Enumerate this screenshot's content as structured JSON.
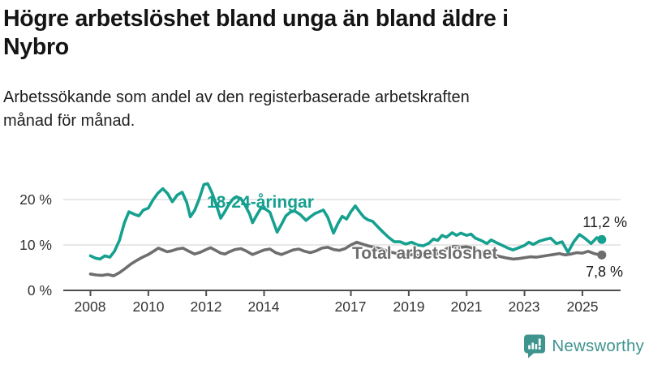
{
  "chart_data": {
    "type": "line",
    "title": "Högre arbetslöshet bland unga än bland äldre i Nybro",
    "subtitle": "Arbetssökande som andel av den registerbaserade arbetskraften månad för månad.",
    "grid": true,
    "legend_position": "inline-labels",
    "x_axis": {
      "range": [
        2007.1,
        2026.3
      ],
      "ticks": [
        {
          "t": 2008,
          "label": "2008"
        },
        {
          "t": 2010,
          "label": "2010"
        },
        {
          "t": 2012,
          "label": "2012"
        },
        {
          "t": 2014,
          "label": "2014"
        },
        {
          "t": 2017,
          "label": "2017"
        },
        {
          "t": 2019,
          "label": "2019"
        },
        {
          "t": 2021,
          "label": "2021"
        },
        {
          "t": 2023,
          "label": "2023"
        },
        {
          "t": 2025,
          "label": "2025"
        }
      ]
    },
    "y_axis": {
      "range": [
        0,
        25
      ],
      "unit": "%",
      "ticks": [
        {
          "v": 0,
          "label": "0 %"
        },
        {
          "v": 10,
          "label": "10 %"
        },
        {
          "v": 20,
          "label": "20 %"
        }
      ]
    },
    "series": [
      {
        "name": "18-24-åringar",
        "color": "#16a08f",
        "end_value": 11.2,
        "end_label": "11,2 %",
        "points": [
          [
            2008.0,
            7.6
          ],
          [
            2008.17,
            7.1
          ],
          [
            2008.33,
            6.9
          ],
          [
            2008.5,
            7.6
          ],
          [
            2008.67,
            7.3
          ],
          [
            2008.83,
            8.6
          ],
          [
            2009.0,
            11.0
          ],
          [
            2009.17,
            14.8
          ],
          [
            2009.33,
            17.3
          ],
          [
            2009.5,
            16.8
          ],
          [
            2009.67,
            16.4
          ],
          [
            2009.83,
            17.7
          ],
          [
            2010.0,
            18.1
          ],
          [
            2010.17,
            20.0
          ],
          [
            2010.33,
            21.4
          ],
          [
            2010.5,
            22.4
          ],
          [
            2010.67,
            21.3
          ],
          [
            2010.83,
            19.5
          ],
          [
            2011.0,
            21.0
          ],
          [
            2011.17,
            21.6
          ],
          [
            2011.33,
            19.3
          ],
          [
            2011.45,
            16.2
          ],
          [
            2011.6,
            17.6
          ],
          [
            2011.75,
            20.0
          ],
          [
            2011.92,
            23.3
          ],
          [
            2012.05,
            23.5
          ],
          [
            2012.2,
            21.5
          ],
          [
            2012.35,
            18.8
          ],
          [
            2012.5,
            15.9
          ],
          [
            2012.63,
            17.2
          ],
          [
            2012.78,
            18.9
          ],
          [
            2012.92,
            20.1
          ],
          [
            2013.05,
            20.6
          ],
          [
            2013.2,
            20.2
          ],
          [
            2013.35,
            18.7
          ],
          [
            2013.5,
            16.8
          ],
          [
            2013.6,
            14.9
          ],
          [
            2013.75,
            16.6
          ],
          [
            2013.9,
            18.2
          ],
          [
            2014.05,
            17.9
          ],
          [
            2014.2,
            17.2
          ],
          [
            2014.45,
            12.8
          ],
          [
            2014.6,
            14.5
          ],
          [
            2014.75,
            16.4
          ],
          [
            2014.9,
            17.2
          ],
          [
            2015.05,
            17.5
          ],
          [
            2015.25,
            16.7
          ],
          [
            2015.45,
            15.4
          ],
          [
            2015.6,
            16.2
          ],
          [
            2015.75,
            16.9
          ],
          [
            2015.9,
            17.3
          ],
          [
            2016.05,
            17.7
          ],
          [
            2016.2,
            16.1
          ],
          [
            2016.4,
            12.6
          ],
          [
            2016.55,
            14.7
          ],
          [
            2016.7,
            16.3
          ],
          [
            2016.85,
            15.7
          ],
          [
            2017.0,
            17.3
          ],
          [
            2017.15,
            18.6
          ],
          [
            2017.3,
            17.3
          ],
          [
            2017.45,
            16.1
          ],
          [
            2017.6,
            15.5
          ],
          [
            2017.75,
            15.2
          ],
          [
            2017.9,
            14.2
          ],
          [
            2018.1,
            12.9
          ],
          [
            2018.3,
            11.7
          ],
          [
            2018.5,
            10.7
          ],
          [
            2018.7,
            10.7
          ],
          [
            2018.9,
            10.2
          ],
          [
            2019.1,
            10.6
          ],
          [
            2019.3,
            10.0
          ],
          [
            2019.5,
            9.8
          ],
          [
            2019.7,
            10.4
          ],
          [
            2019.85,
            11.3
          ],
          [
            2020.0,
            11.0
          ],
          [
            2020.15,
            12.1
          ],
          [
            2020.3,
            11.7
          ],
          [
            2020.5,
            12.7
          ],
          [
            2020.65,
            12.1
          ],
          [
            2020.8,
            12.6
          ],
          [
            2021.0,
            12.1
          ],
          [
            2021.15,
            12.4
          ],
          [
            2021.3,
            11.5
          ],
          [
            2021.5,
            11.0
          ],
          [
            2021.7,
            10.3
          ],
          [
            2021.85,
            11.1
          ],
          [
            2022.0,
            10.6
          ],
          [
            2022.2,
            10.0
          ],
          [
            2022.4,
            9.4
          ],
          [
            2022.6,
            8.9
          ],
          [
            2022.8,
            9.4
          ],
          [
            2023.0,
            9.9
          ],
          [
            2023.15,
            10.6
          ],
          [
            2023.3,
            10.1
          ],
          [
            2023.5,
            10.8
          ],
          [
            2023.7,
            11.2
          ],
          [
            2023.9,
            11.5
          ],
          [
            2024.1,
            10.3
          ],
          [
            2024.3,
            10.7
          ],
          [
            2024.5,
            8.4
          ],
          [
            2024.7,
            10.7
          ],
          [
            2024.9,
            12.3
          ],
          [
            2025.1,
            11.4
          ],
          [
            2025.3,
            10.3
          ],
          [
            2025.5,
            11.6
          ],
          [
            2025.67,
            11.2
          ]
        ]
      },
      {
        "name": "Total arbetslöshet",
        "color": "#6e6e6e",
        "end_value": 7.8,
        "end_label": "7,8 %",
        "points": [
          [
            2008.0,
            3.6
          ],
          [
            2008.2,
            3.4
          ],
          [
            2008.4,
            3.3
          ],
          [
            2008.6,
            3.5
          ],
          [
            2008.8,
            3.2
          ],
          [
            2009.0,
            3.9
          ],
          [
            2009.2,
            4.8
          ],
          [
            2009.4,
            5.8
          ],
          [
            2009.6,
            6.6
          ],
          [
            2009.8,
            7.3
          ],
          [
            2010.0,
            7.9
          ],
          [
            2010.2,
            8.7
          ],
          [
            2010.35,
            9.3
          ],
          [
            2010.5,
            8.9
          ],
          [
            2010.65,
            8.5
          ],
          [
            2010.8,
            8.7
          ],
          [
            2011.0,
            9.1
          ],
          [
            2011.2,
            9.3
          ],
          [
            2011.4,
            8.6
          ],
          [
            2011.6,
            8.0
          ],
          [
            2011.8,
            8.4
          ],
          [
            2012.0,
            9.0
          ],
          [
            2012.15,
            9.4
          ],
          [
            2012.3,
            8.9
          ],
          [
            2012.5,
            8.2
          ],
          [
            2012.65,
            8.0
          ],
          [
            2012.8,
            8.5
          ],
          [
            2013.0,
            9.0
          ],
          [
            2013.2,
            9.2
          ],
          [
            2013.4,
            8.6
          ],
          [
            2013.6,
            7.9
          ],
          [
            2013.8,
            8.4
          ],
          [
            2014.0,
            8.9
          ],
          [
            2014.2,
            9.1
          ],
          [
            2014.4,
            8.3
          ],
          [
            2014.6,
            7.9
          ],
          [
            2014.8,
            8.4
          ],
          [
            2015.0,
            8.9
          ],
          [
            2015.2,
            9.1
          ],
          [
            2015.4,
            8.6
          ],
          [
            2015.6,
            8.3
          ],
          [
            2015.8,
            8.7
          ],
          [
            2016.0,
            9.3
          ],
          [
            2016.2,
            9.5
          ],
          [
            2016.4,
            9.0
          ],
          [
            2016.6,
            8.8
          ],
          [
            2016.8,
            9.2
          ],
          [
            2017.0,
            10.0
          ],
          [
            2017.2,
            10.6
          ],
          [
            2017.4,
            10.2
          ],
          [
            2017.6,
            9.8
          ],
          [
            2017.8,
            9.5
          ],
          [
            2018.0,
            9.2
          ],
          [
            2018.2,
            8.8
          ],
          [
            2018.4,
            8.4
          ],
          [
            2018.6,
            8.1
          ],
          [
            2018.8,
            7.9
          ],
          [
            2019.0,
            7.8
          ],
          [
            2019.2,
            7.9
          ],
          [
            2019.4,
            7.6
          ],
          [
            2019.6,
            7.5
          ],
          [
            2019.8,
            7.8
          ],
          [
            2020.0,
            8.1
          ],
          [
            2020.2,
            8.8
          ],
          [
            2020.4,
            9.5
          ],
          [
            2020.6,
            9.7
          ],
          [
            2020.8,
            9.5
          ],
          [
            2021.0,
            9.6
          ],
          [
            2021.2,
            9.3
          ],
          [
            2021.4,
            8.8
          ],
          [
            2021.6,
            8.3
          ],
          [
            2021.8,
            8.0
          ],
          [
            2022.0,
            7.7
          ],
          [
            2022.2,
            7.4
          ],
          [
            2022.4,
            7.1
          ],
          [
            2022.6,
            6.9
          ],
          [
            2022.8,
            7.0
          ],
          [
            2023.0,
            7.2
          ],
          [
            2023.2,
            7.4
          ],
          [
            2023.4,
            7.3
          ],
          [
            2023.6,
            7.5
          ],
          [
            2023.8,
            7.7
          ],
          [
            2024.0,
            7.9
          ],
          [
            2024.2,
            8.1
          ],
          [
            2024.4,
            7.8
          ],
          [
            2024.6,
            8.0
          ],
          [
            2024.8,
            8.3
          ],
          [
            2025.0,
            8.2
          ],
          [
            2025.2,
            8.6
          ],
          [
            2025.4,
            8.1
          ],
          [
            2025.55,
            7.9
          ],
          [
            2025.67,
            7.8
          ]
        ]
      }
    ]
  },
  "branding": {
    "logo_text": "Newsworthy",
    "logo_color": "#3f948e"
  },
  "colors": {
    "accent_teal": "#16a08f",
    "series_gray": "#6e6e6e",
    "gridline": "#d9d9d9",
    "axis": "#4d4d4d"
  }
}
